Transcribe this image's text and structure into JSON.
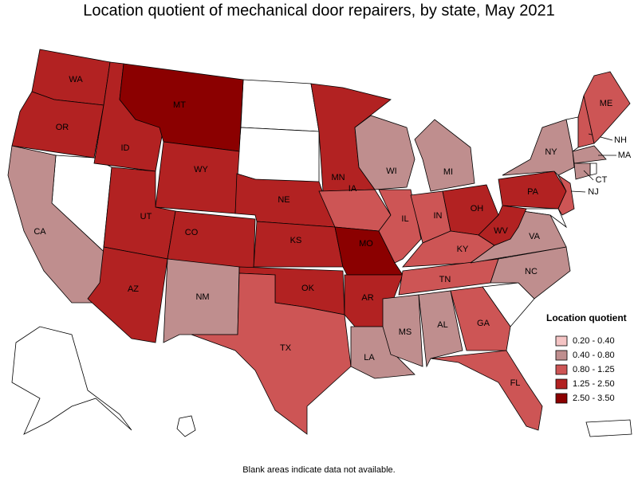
{
  "title": "Location quotient of mechanical door repairers, by state, May 2021",
  "note": "Blank areas indicate data not available.",
  "legend": {
    "title": "Location quotient",
    "classes": [
      {
        "label": "0.20 - 0.40",
        "color": "#f4c4c4"
      },
      {
        "label": "0.40 - 0.80",
        "color": "#bf8e8e"
      },
      {
        "label": "0.80 - 1.25",
        "color": "#cd5555"
      },
      {
        "label": "1.25 - 2.50",
        "color": "#b22222"
      },
      {
        "label": "2.50 - 3.50",
        "color": "#8b0000"
      }
    ]
  },
  "states": [
    {
      "abbr": "WA",
      "class": 3
    },
    {
      "abbr": "OR",
      "class": 3
    },
    {
      "abbr": "CA",
      "class": 1
    },
    {
      "abbr": "ID",
      "class": 3
    },
    {
      "abbr": "MT",
      "class": 4
    },
    {
      "abbr": "WY",
      "class": 3
    },
    {
      "abbr": "UT",
      "class": 3
    },
    {
      "abbr": "AZ",
      "class": 3
    },
    {
      "abbr": "CO",
      "class": 3
    },
    {
      "abbr": "NM",
      "class": 1
    },
    {
      "abbr": "NE",
      "class": 3
    },
    {
      "abbr": "KS",
      "class": 3
    },
    {
      "abbr": "OK",
      "class": 3
    },
    {
      "abbr": "TX",
      "class": 2
    },
    {
      "abbr": "MN",
      "class": 3
    },
    {
      "abbr": "IA",
      "class": 2
    },
    {
      "abbr": "MO",
      "class": 4
    },
    {
      "abbr": "AR",
      "class": 3
    },
    {
      "abbr": "LA",
      "class": 1
    },
    {
      "abbr": "WI",
      "class": 1
    },
    {
      "abbr": "IL",
      "class": 2
    },
    {
      "abbr": "MI",
      "class": 1
    },
    {
      "abbr": "IN",
      "class": 2
    },
    {
      "abbr": "OH",
      "class": 3
    },
    {
      "abbr": "KY",
      "class": 2
    },
    {
      "abbr": "TN",
      "class": 2
    },
    {
      "abbr": "MS",
      "class": 1
    },
    {
      "abbr": "AL",
      "class": 1
    },
    {
      "abbr": "GA",
      "class": 2
    },
    {
      "abbr": "FL",
      "class": 2
    },
    {
      "abbr": "NC",
      "class": 1
    },
    {
      "abbr": "VA",
      "class": 1
    },
    {
      "abbr": "WV",
      "class": 3
    },
    {
      "abbr": "PA",
      "class": 3
    },
    {
      "abbr": "NJ",
      "class": 2
    },
    {
      "abbr": "NY",
      "class": 1
    },
    {
      "abbr": "NH",
      "class": 2
    },
    {
      "abbr": "ME",
      "class": 2
    },
    {
      "abbr": "MA",
      "class": 1
    },
    {
      "abbr": "CT",
      "class": 1
    }
  ]
}
